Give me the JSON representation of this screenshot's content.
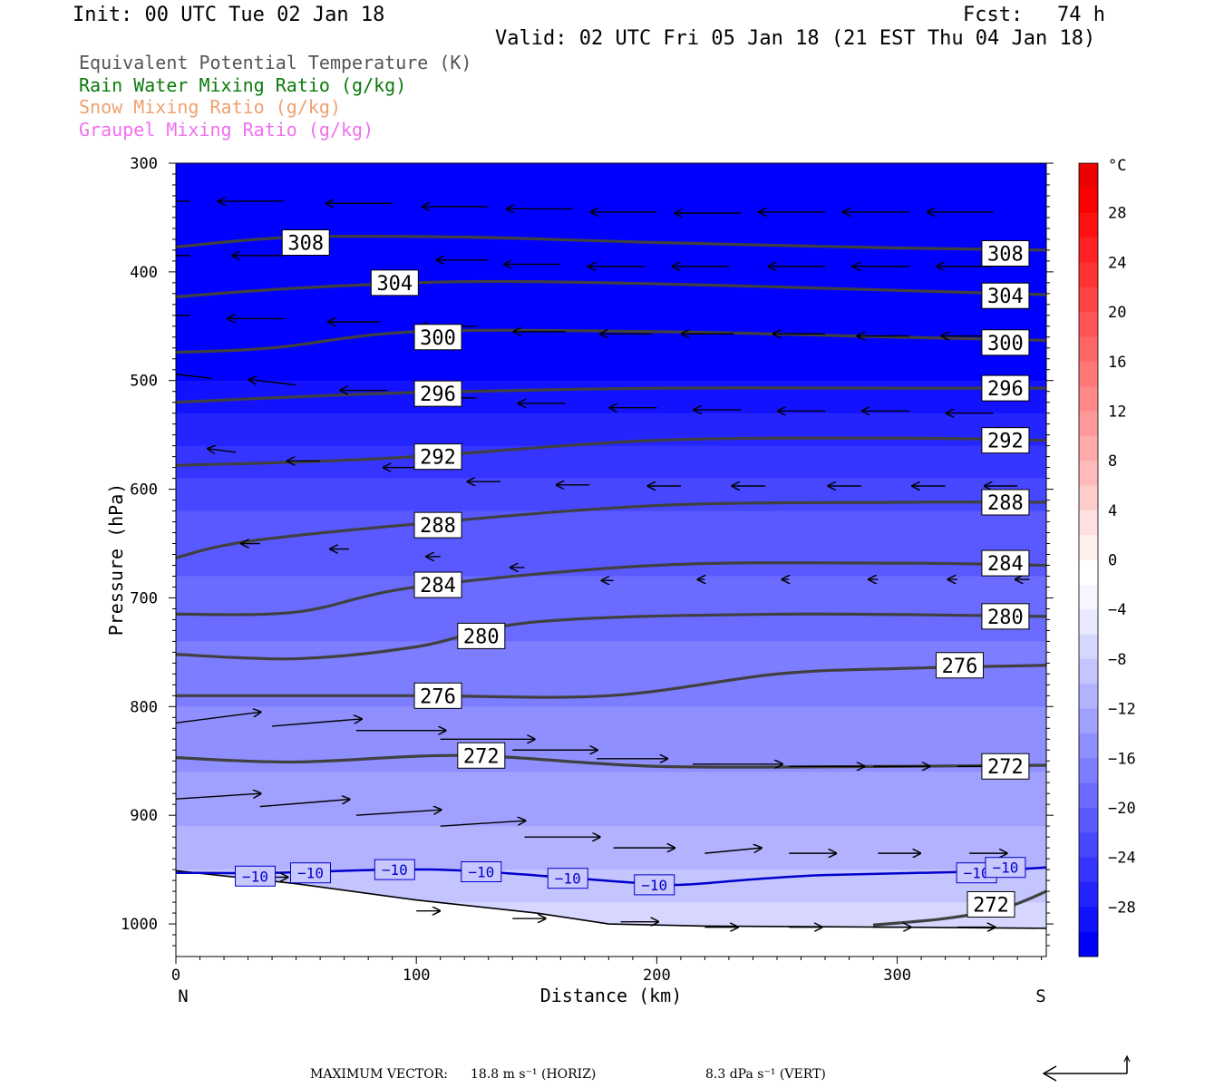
{
  "header": {
    "init": "Init: 00 UTC Tue 02 Jan 18",
    "fcst_label": "Fcst:",
    "fcst_value": "74 h",
    "valid": "Valid: 02 UTC Fri 05 Jan 18 (21 EST Thu 04 Jan 18)"
  },
  "legend": [
    {
      "label": "Equivalent Potential Temperature (K)",
      "color": "#555555"
    },
    {
      "label": "Rain Water Mixing Ratio (g/kg)",
      "color": "#0a7a0a"
    },
    {
      "label": "Snow Mixing Ratio (g/kg)",
      "color": "#f0a070"
    },
    {
      "label": "Graupel Mixing Ratio (g/kg)",
      "color": "#f070f0"
    }
  ],
  "footer": {
    "max_vector_label": "MAXIMUM VECTOR:",
    "horiz": "18.8 m s⁻¹ (HORIZ)",
    "vert": "8.3 dPa s⁻¹ (VERT)"
  },
  "chart_data": {
    "type": "contour",
    "xlabel": "Distance (km)",
    "ylabel": "Pressure (hPa)",
    "x_range": [
      0,
      362
    ],
    "y_range": [
      1030,
      300
    ],
    "x_ticks": [
      0,
      100,
      200,
      300
    ],
    "y_ticks": [
      300,
      400,
      500,
      600,
      700,
      800,
      900,
      1000
    ],
    "x_end_labels": {
      "left": "N",
      "right": "S"
    },
    "shading": "Temperature (°C)",
    "colorbar": {
      "unit": "°C",
      "tick_labels": [
        "28",
        "24",
        "20",
        "16",
        "12",
        "8",
        "4",
        "0",
        "−4",
        "−8",
        "−12",
        "−16",
        "−20",
        "−24",
        "−28"
      ],
      "levels": [
        -32,
        -30,
        -28,
        -26,
        -24,
        -22,
        -20,
        -18,
        -16,
        -14,
        -12,
        -10,
        -8,
        -6,
        -4,
        -2,
        0,
        2,
        4,
        6,
        8,
        10,
        12,
        14,
        16,
        18,
        20,
        22,
        24,
        26,
        28,
        30,
        32
      ],
      "colors": [
        "#0000ff",
        "#1212ff",
        "#2424ff",
        "#3535ff",
        "#4747ff",
        "#5959ff",
        "#6b6bff",
        "#7d7dff",
        "#8f8fff",
        "#a0a0ff",
        "#b2b2ff",
        "#c4c4ff",
        "#d6d6ff",
        "#e8e8ff",
        "#f6f6ff",
        "#ffffff",
        "#fff0f0",
        "#ffe0e0",
        "#ffcccc",
        "#ffbbbb",
        "#ffaaaa",
        "#ff9999",
        "#ff8888",
        "#ff7777",
        "#ff6666",
        "#ff5555",
        "#ff4444",
        "#ff3333",
        "#ff2222",
        "#ff1111",
        "#ff0000",
        "#ee0000"
      ]
    },
    "temperature_profile": [
      {
        "p": 300,
        "t": -54
      },
      {
        "p": 400,
        "t": -40
      },
      {
        "p": 500,
        "t": -30
      },
      {
        "p": 560,
        "t": -26
      },
      {
        "p": 620,
        "t": -22
      },
      {
        "p": 680,
        "t": -20
      },
      {
        "p": 740,
        "t": -18
      },
      {
        "p": 800,
        "t": -16
      },
      {
        "p": 860,
        "t": -14
      },
      {
        "p": 910,
        "t": -12
      },
      {
        "p": 950,
        "t": -10
      },
      {
        "p": 980,
        "t": -8
      },
      {
        "p": 1030,
        "t": -6
      }
    ],
    "theta_e_contours": [
      {
        "label": "308",
        "points": [
          [
            0,
            377
          ],
          [
            50,
            368
          ],
          [
            120,
            368
          ],
          [
            200,
            373
          ],
          [
            300,
            378
          ],
          [
            362,
            380
          ]
        ],
        "labels_at": [
          [
            54,
            373
          ],
          [
            345,
            383
          ]
        ]
      },
      {
        "label": "304",
        "points": [
          [
            0,
            423
          ],
          [
            50,
            415
          ],
          [
            120,
            409
          ],
          [
            200,
            411
          ],
          [
            300,
            417
          ],
          [
            362,
            421
          ]
        ],
        "labels_at": [
          [
            91,
            410
          ],
          [
            345,
            422
          ]
        ]
      },
      {
        "label": "300",
        "points": [
          [
            0,
            474
          ],
          [
            40,
            470
          ],
          [
            100,
            455
          ],
          [
            200,
            455
          ],
          [
            300,
            460
          ],
          [
            362,
            463
          ]
        ],
        "labels_at": [
          [
            109,
            460
          ],
          [
            345,
            465
          ]
        ]
      },
      {
        "label": "296",
        "points": [
          [
            0,
            520
          ],
          [
            50,
            515
          ],
          [
            100,
            511
          ],
          [
            200,
            507
          ],
          [
            300,
            507
          ],
          [
            362,
            507
          ]
        ],
        "labels_at": [
          [
            109,
            512
          ],
          [
            345,
            507
          ]
        ]
      },
      {
        "label": "292",
        "points": [
          [
            0,
            578
          ],
          [
            50,
            575
          ],
          [
            100,
            570
          ],
          [
            200,
            555
          ],
          [
            300,
            553
          ],
          [
            362,
            555
          ]
        ],
        "labels_at": [
          [
            109,
            570
          ],
          [
            345,
            555
          ]
        ]
      },
      {
        "label": "288",
        "points": [
          [
            0,
            663
          ],
          [
            30,
            648
          ],
          [
            100,
            632
          ],
          [
            200,
            615
          ],
          [
            300,
            612
          ],
          [
            362,
            612
          ]
        ],
        "labels_at": [
          [
            109,
            633
          ],
          [
            345,
            612
          ]
        ]
      },
      {
        "label": "284",
        "points": [
          [
            0,
            715
          ],
          [
            50,
            713
          ],
          [
            100,
            690
          ],
          [
            200,
            670
          ],
          [
            300,
            668
          ],
          [
            362,
            670
          ]
        ],
        "labels_at": [
          [
            109,
            688
          ],
          [
            345,
            668
          ]
        ]
      },
      {
        "label": "280",
        "points": [
          [
            0,
            752
          ],
          [
            50,
            756
          ],
          [
            100,
            745
          ],
          [
            150,
            722
          ],
          [
            250,
            715
          ],
          [
            362,
            717
          ]
        ],
        "labels_at": [
          [
            127,
            735
          ],
          [
            345,
            717
          ]
        ]
      },
      {
        "label": "276",
        "points": [
          [
            0,
            790
          ],
          [
            100,
            790
          ],
          [
            180,
            790
          ],
          [
            250,
            770
          ],
          [
            300,
            765
          ],
          [
            362,
            762
          ]
        ],
        "labels_at": [
          [
            109,
            790
          ],
          [
            326,
            762
          ]
        ]
      },
      {
        "label": "272",
        "points": [
          [
            0,
            847
          ],
          [
            50,
            851
          ],
          [
            120,
            845
          ],
          [
            200,
            855
          ],
          [
            300,
            855
          ],
          [
            362,
            854
          ]
        ],
        "labels_at": [
          [
            127,
            845
          ],
          [
            345,
            855
          ]
        ]
      },
      {
        "label": "272",
        "points": [
          [
            290,
            1001
          ],
          [
            320,
            995
          ],
          [
            345,
            985
          ],
          [
            362,
            970
          ]
        ],
        "labels_at": [
          [
            339,
            982
          ]
        ]
      }
    ],
    "temperature_contour": {
      "label": "−10",
      "points": [
        [
          0,
          953
        ],
        [
          40,
          953
        ],
        [
          90,
          950
        ],
        [
          120,
          951
        ],
        [
          160,
          957
        ],
        [
          190,
          962
        ],
        [
          210,
          964
        ],
        [
          240,
          959
        ],
        [
          270,
          955
        ],
        [
          330,
          952
        ],
        [
          362,
          948
        ]
      ],
      "labels_at": [
        [
          33,
          956
        ],
        [
          56,
          953
        ],
        [
          91,
          950
        ],
        [
          127,
          952
        ],
        [
          163,
          958
        ],
        [
          199,
          964
        ],
        [
          333,
          953
        ],
        [
          345,
          948
        ]
      ]
    },
    "terrain": [
      [
        0,
        951
      ],
      [
        50,
        963
      ],
      [
        100,
        978
      ],
      [
        150,
        990
      ],
      [
        180,
        1000
      ],
      [
        220,
        1002
      ],
      [
        300,
        1003
      ],
      [
        362,
        1004
      ]
    ],
    "circulation_vectors": [
      {
        "x": 6,
        "p": 335,
        "u": -28,
        "v": 0
      },
      {
        "x": 45,
        "p": 335,
        "u": -28,
        "v": 0
      },
      {
        "x": 90,
        "p": 337,
        "u": -28,
        "v": 0
      },
      {
        "x": 130,
        "p": 340,
        "u": -28,
        "v": 0
      },
      {
        "x": 165,
        "p": 342,
        "u": -28,
        "v": 0
      },
      {
        "x": 200,
        "p": 345,
        "u": -28,
        "v": 0
      },
      {
        "x": 235,
        "p": 346,
        "u": -28,
        "v": 0
      },
      {
        "x": 270,
        "p": 345,
        "u": -28,
        "v": 0
      },
      {
        "x": 305,
        "p": 345,
        "u": -28,
        "v": 0
      },
      {
        "x": 340,
        "p": 345,
        "u": -28,
        "v": 0
      },
      {
        "x": 6,
        "p": 385,
        "u": -28,
        "v": 0
      },
      {
        "x": 45,
        "p": 385,
        "u": -22,
        "v": 0
      },
      {
        "x": 130,
        "p": 389,
        "u": -22,
        "v": 0
      },
      {
        "x": 160,
        "p": 393,
        "u": -24,
        "v": 0
      },
      {
        "x": 195,
        "p": 395,
        "u": -24,
        "v": 0
      },
      {
        "x": 230,
        "p": 395,
        "u": -24,
        "v": 0
      },
      {
        "x": 270,
        "p": 395,
        "u": -24,
        "v": 0
      },
      {
        "x": 305,
        "p": 395,
        "u": -24,
        "v": 0
      },
      {
        "x": 340,
        "p": 395,
        "u": -24,
        "v": 0
      },
      {
        "x": 6,
        "p": 440,
        "u": -28,
        "v": 0
      },
      {
        "x": 45,
        "p": 443,
        "u": -24,
        "v": 0
      },
      {
        "x": 85,
        "p": 446,
        "u": -22,
        "v": 0
      },
      {
        "x": 125,
        "p": 450,
        "u": -24,
        "v": 0
      },
      {
        "x": 162,
        "p": 455,
        "u": -22,
        "v": 0
      },
      {
        "x": 198,
        "p": 457,
        "u": -22,
        "v": 0
      },
      {
        "x": 232,
        "p": 457,
        "u": -22,
        "v": 0
      },
      {
        "x": 270,
        "p": 457,
        "u": -22,
        "v": 0
      },
      {
        "x": 305,
        "p": 459,
        "u": -22,
        "v": 0
      },
      {
        "x": 340,
        "p": 459,
        "u": -22,
        "v": 0
      },
      {
        "x": 15,
        "p": 498,
        "u": -20,
        "v": -3
      },
      {
        "x": 50,
        "p": 504,
        "u": -20,
        "v": -3
      },
      {
        "x": 88,
        "p": 509,
        "u": -20,
        "v": 0
      },
      {
        "x": 125,
        "p": 516,
        "u": -22,
        "v": 0
      },
      {
        "x": 162,
        "p": 521,
        "u": -20,
        "v": 0
      },
      {
        "x": 200,
        "p": 525,
        "u": -20,
        "v": 0
      },
      {
        "x": 235,
        "p": 527,
        "u": -20,
        "v": 0
      },
      {
        "x": 270,
        "p": 528,
        "u": -20,
        "v": 0
      },
      {
        "x": 305,
        "p": 528,
        "u": -20,
        "v": 0
      },
      {
        "x": 340,
        "p": 530,
        "u": -20,
        "v": 0
      },
      {
        "x": 25,
        "p": 566,
        "u": -12,
        "v": -2
      },
      {
        "x": 60,
        "p": 574,
        "u": -14,
        "v": 0
      },
      {
        "x": 100,
        "p": 580,
        "u": -14,
        "v": 0
      },
      {
        "x": 135,
        "p": 593,
        "u": -14,
        "v": 0
      },
      {
        "x": 172,
        "p": 596,
        "u": -14,
        "v": 0
      },
      {
        "x": 210,
        "p": 597,
        "u": -14,
        "v": 0
      },
      {
        "x": 245,
        "p": 597,
        "u": -14,
        "v": 0
      },
      {
        "x": 285,
        "p": 597,
        "u": -14,
        "v": 0
      },
      {
        "x": 320,
        "p": 597,
        "u": -14,
        "v": 0
      },
      {
        "x": 350,
        "p": 597,
        "u": -14,
        "v": 0
      },
      {
        "x": 35,
        "p": 650,
        "u": -8,
        "v": 0
      },
      {
        "x": 72,
        "p": 655,
        "u": -8,
        "v": 0
      },
      {
        "x": 110,
        "p": 662,
        "u": -6,
        "v": 0
      },
      {
        "x": 145,
        "p": 672,
        "u": -6,
        "v": 0
      },
      {
        "x": 182,
        "p": 684,
        "u": -5,
        "v": 0
      },
      {
        "x": 220,
        "p": 683,
        "u": -3,
        "v": 0
      },
      {
        "x": 255,
        "p": 683,
        "u": -3,
        "v": 0
      },
      {
        "x": 292,
        "p": 683,
        "u": -4,
        "v": 0
      },
      {
        "x": 325,
        "p": 683,
        "u": -4,
        "v": 0
      },
      {
        "x": 355,
        "p": 683,
        "u": -6,
        "v": 0
      }
    ],
    "circulation_vectors_low": [
      {
        "x": 0,
        "p": 815,
        "u": 36,
        "v": -6
      },
      {
        "x": 40,
        "p": 818,
        "u": 38,
        "v": -4
      },
      {
        "x": 75,
        "p": 822,
        "u": 38,
        "v": 0
      },
      {
        "x": 110,
        "p": 830,
        "u": 40,
        "v": 0
      },
      {
        "x": 140,
        "p": 840,
        "u": 36,
        "v": 0
      },
      {
        "x": 175,
        "p": 848,
        "u": 30,
        "v": 0
      },
      {
        "x": 215,
        "p": 853,
        "u": 38,
        "v": 0
      },
      {
        "x": 255,
        "p": 855,
        "u": 32,
        "v": 0
      },
      {
        "x": 290,
        "p": 855,
        "u": 24,
        "v": 0
      },
      {
        "x": 325,
        "p": 855,
        "u": 18,
        "v": 0
      },
      {
        "x": 0,
        "p": 885,
        "u": 36,
        "v": -3
      },
      {
        "x": 35,
        "p": 892,
        "u": 38,
        "v": -4
      },
      {
        "x": 75,
        "p": 900,
        "u": 36,
        "v": -3
      },
      {
        "x": 110,
        "p": 910,
        "u": 36,
        "v": -3
      },
      {
        "x": 145,
        "p": 920,
        "u": 32,
        "v": 0
      },
      {
        "x": 182,
        "p": 930,
        "u": 26,
        "v": 0
      },
      {
        "x": 220,
        "p": 935,
        "u": 24,
        "v": -3
      },
      {
        "x": 255,
        "p": 935,
        "u": 20,
        "v": 0
      },
      {
        "x": 292,
        "p": 935,
        "u": 18,
        "v": 0
      },
      {
        "x": 330,
        "p": 935,
        "u": 16,
        "v": 0
      },
      {
        "x": 25,
        "p": 957,
        "u": 22,
        "v": 0
      },
      {
        "x": 100,
        "p": 988,
        "u": 10,
        "v": 0
      },
      {
        "x": 140,
        "p": 995,
        "u": 14,
        "v": 0
      },
      {
        "x": 185,
        "p": 998,
        "u": 16,
        "v": 0
      },
      {
        "x": 220,
        "p": 1003,
        "u": 14,
        "v": 0
      },
      {
        "x": 255,
        "p": 1003,
        "u": 14,
        "v": 0
      },
      {
        "x": 290,
        "p": 1003,
        "u": 16,
        "v": 0
      },
      {
        "x": 325,
        "p": 1003,
        "u": 16,
        "v": 0
      }
    ]
  }
}
